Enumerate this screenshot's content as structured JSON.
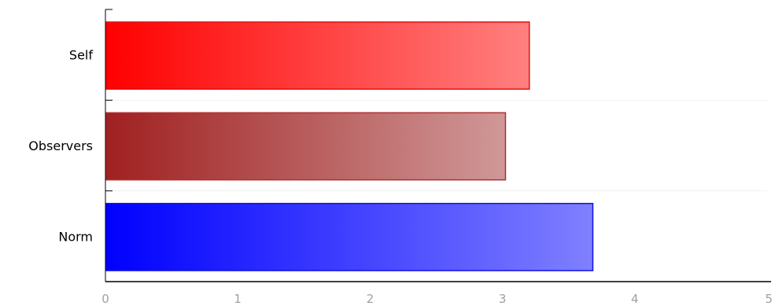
{
  "chart_data": {
    "type": "bar",
    "orientation": "horizontal",
    "categories": [
      "Self",
      "Observers",
      "Norm"
    ],
    "values": [
      3.2,
      3.02,
      3.68
    ],
    "xlim": [
      0,
      5
    ],
    "x_ticks": [
      "0",
      "1",
      "2",
      "3",
      "4",
      "5"
    ],
    "title": "",
    "xlabel": "",
    "ylabel": "",
    "grid": false,
    "legend": "none",
    "bar_colors": [
      {
        "start": "#ff0000",
        "end": "#ff8080",
        "border": "#e01010"
      },
      {
        "start": "#a02020",
        "end": "#d09898",
        "border": "#b03030"
      },
      {
        "start": "#0000ff",
        "end": "#8080ff",
        "border": "#1010e0"
      }
    ]
  }
}
